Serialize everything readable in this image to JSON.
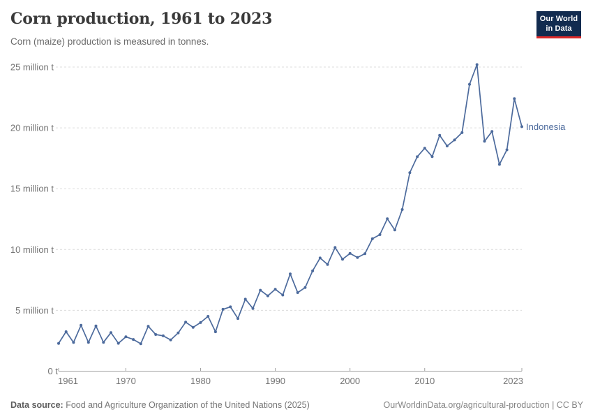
{
  "header": {
    "title": "Corn production, 1961 to 2023",
    "subtitle": "Corn (maize) production is measured in tonnes."
  },
  "logo": {
    "line1": "Our World",
    "line2": "in Data"
  },
  "colors": {
    "series_line": "#4C6A9C",
    "logo_background": "#122b4f",
    "logo_underline": "#dc2828",
    "gridline": "#dcdcdc",
    "axis": "#a1a1a1",
    "tick_text": "#737373"
  },
  "chart_data": {
    "type": "line",
    "title": "Corn production, 1961 to 2023",
    "subtitle": "Corn (maize) production is measured in tonnes.",
    "unit": "tonnes",
    "entity": "Indonesia",
    "legend_position": "end-of-line label",
    "grid": "horizontal dashed",
    "ylim": [
      0,
      25000000
    ],
    "x_ticks": [
      1961,
      1970,
      1980,
      1990,
      2000,
      2010,
      2023
    ],
    "y_ticks": [
      {
        "value": 0,
        "label": "0 t"
      },
      {
        "value": 5000000,
        "label": "5 million t"
      },
      {
        "value": 10000000,
        "label": "10 million t"
      },
      {
        "value": 15000000,
        "label": "15 million t"
      },
      {
        "value": 20000000,
        "label": "20 million t"
      },
      {
        "value": 25000000,
        "label": "25 million t"
      }
    ],
    "x": [
      1961,
      1962,
      1963,
      1964,
      1965,
      1966,
      1967,
      1968,
      1969,
      1970,
      1971,
      1972,
      1973,
      1974,
      1975,
      1976,
      1977,
      1978,
      1979,
      1980,
      1981,
      1982,
      1983,
      1984,
      1985,
      1986,
      1987,
      1988,
      1989,
      1990,
      1991,
      1992,
      1993,
      1994,
      1995,
      1996,
      1997,
      1998,
      1999,
      2000,
      2001,
      2002,
      2003,
      2004,
      2005,
      2006,
      2007,
      2008,
      2009,
      2010,
      2011,
      2012,
      2013,
      2014,
      2015,
      2016,
      2017,
      2018,
      2019,
      2020,
      2021,
      2022,
      2023
    ],
    "series": [
      {
        "name": "Indonesia",
        "color": "#4C6A9C",
        "values": [
          2283000,
          3243000,
          2358000,
          3769000,
          2365000,
          3717000,
          2369000,
          3166000,
          2292000,
          2825000,
          2606000,
          2254000,
          3690000,
          3011000,
          2903000,
          2572000,
          3143000,
          4029000,
          3606000,
          3994000,
          4509000,
          3235000,
          5087000,
          5288000,
          4330000,
          5920000,
          5156000,
          6652000,
          6193000,
          6734000,
          6256000,
          7995000,
          6460000,
          6869000,
          8246000,
          9307000,
          8771000,
          10169000,
          9204000,
          9677000,
          9347000,
          9654000,
          10886000,
          11225000,
          12524000,
          11609000,
          13288000,
          16317000,
          17630000,
          18328000,
          17643000,
          19387000,
          18512000,
          19008000,
          19612000,
          23578000,
          25200000,
          18900000,
          19700000,
          17000000,
          18200000,
          22400000,
          20100000
        ]
      }
    ]
  },
  "footer": {
    "source_label": "Data source:",
    "source_text": "Food and Agriculture Organization of the United Nations (2025)",
    "right_text": "OurWorldinData.org/agricultural-production | CC BY"
  }
}
